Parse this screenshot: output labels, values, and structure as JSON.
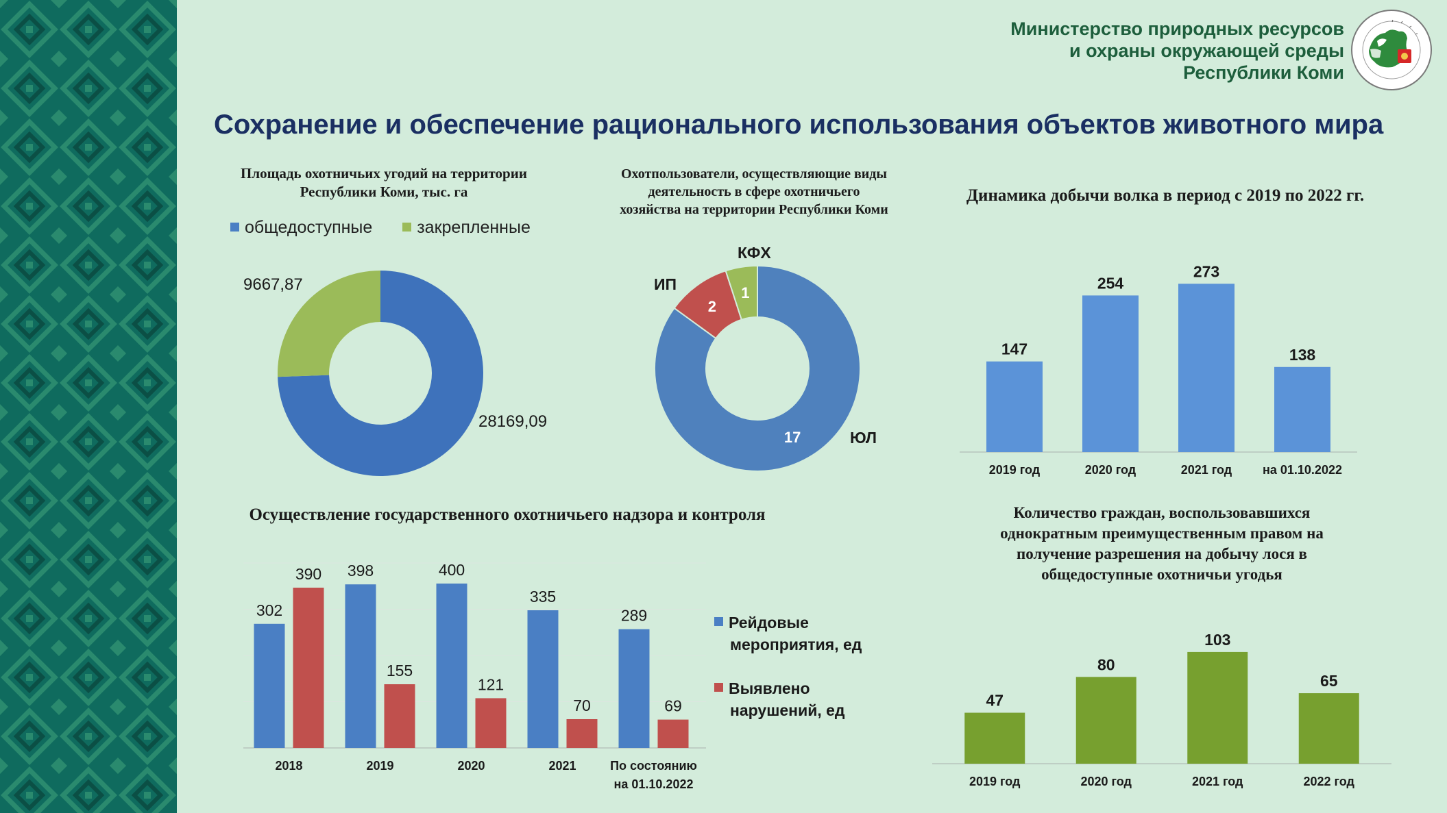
{
  "header": {
    "ministry_line1": "Министерство природных ресурсов",
    "ministry_line2": "и охраны окружающей среды",
    "ministry_line3": "Республики Коми",
    "emblem_text": "МИНИСТЕРСТВО ПРИРОДНЫХ РЕСУРСОВ И ОХРАНЫ ОКРУЖАЮЩЕЙ СРЕДЫ РЕСПУБЛИКА КОМИ"
  },
  "page_title": "Сохранение и обеспечение рационального использования объектов животного мира",
  "colors": {
    "background": "#d3ecdb",
    "side_pattern": "#0f6b5e",
    "blue": "#4a7fc4",
    "light_blue": "#5b93d8",
    "red": "#c0504d",
    "green": "#9bbb59",
    "dark_green": "#77a02f",
    "title_navy": "#1a2f62",
    "ministry_green": "#1d5e3c"
  },
  "icons": {
    "emblem": "komi-ministry-emblem",
    "side": "komi-ornament-pattern"
  },
  "chart_data": [
    {
      "id": "hunting_area",
      "type": "pie",
      "donut": true,
      "title_line1": "Площадь охотничьих угодий на территории",
      "title_line2": "Республики Коми, тыс. га",
      "legend": [
        {
          "name": "общедоступные",
          "color": "#4a7fc4"
        },
        {
          "name": "закрепленные",
          "color": "#9bbb59"
        }
      ],
      "slices": [
        {
          "name": "общедоступные",
          "value": 28169.09,
          "label": "28169,09",
          "color": "#3e72bb"
        },
        {
          "name": "закрепленные",
          "value": 9667.87,
          "label": "9667,87",
          "color": "#9bbb59"
        }
      ]
    },
    {
      "id": "hunting_users",
      "type": "pie",
      "donut": true,
      "title_line1": "Охотпользователи, осуществляющие виды",
      "title_line2": "деятельность в сфере охотничьего",
      "title_line3": "хозяйства на территории Республики Коми",
      "slices": [
        {
          "name": "ЮЛ",
          "value": 17,
          "label": "17",
          "color": "#4f81bd"
        },
        {
          "name": "ИП",
          "value": 2,
          "label": "2",
          "color": "#c0504d"
        },
        {
          "name": "КФХ",
          "value": 1,
          "label": "1",
          "color": "#9bbb59"
        }
      ]
    },
    {
      "id": "wolf_harvest",
      "type": "bar",
      "title": "Динамика добычи волка в период с 2019 по 2022 гг.",
      "categories": [
        "2019 год",
        "2020 год",
        "2021 год",
        "на 01.10.2022"
      ],
      "values": [
        147,
        254,
        273,
        138
      ],
      "color": "#5b93d8",
      "ylim": [
        0,
        300
      ]
    },
    {
      "id": "supervision",
      "type": "bar",
      "title": "Осуществление государственного охотничьего надзора и контроля",
      "categories": [
        "2018",
        "2019",
        "2020",
        "2021",
        "По состоянию на 01.10.2022"
      ],
      "category_lines": [
        [
          "2018"
        ],
        [
          "2019"
        ],
        [
          "2020"
        ],
        [
          "2021"
        ],
        [
          "По состоянию",
          "на 01.10.2022"
        ]
      ],
      "series": [
        {
          "name": "Рейдовые мероприятия, ед",
          "name_line1": "Рейдовые",
          "name_line2": "мероприятия, ед",
          "values": [
            302,
            398,
            400,
            335,
            289
          ],
          "color": "#4a7fc4"
        },
        {
          "name": "Выявлено нарушений, ед",
          "name_line1": "Выявлено",
          "name_line2": "нарушений, ед",
          "values": [
            390,
            155,
            121,
            70,
            69
          ],
          "color": "#c0504d"
        }
      ],
      "ylim": [
        0,
        450
      ],
      "grid": true
    },
    {
      "id": "elk_citizens",
      "type": "bar",
      "title_line1": "Количество граждан, воспользовавшихся",
      "title_line2": "однократным преимущественным правом на",
      "title_line3": "получение разрешения на добычу лося в",
      "title_line4": "общедоступные охотничьи угодья",
      "categories": [
        "2019 год",
        "2020 год",
        "2021 год",
        "2022 год"
      ],
      "values": [
        47,
        80,
        103,
        65
      ],
      "color": "#77a02f",
      "ylim": [
        0,
        120
      ]
    }
  ]
}
